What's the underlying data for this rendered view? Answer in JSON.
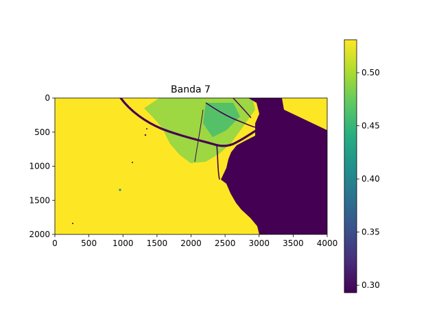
{
  "chart_data": {
    "type": "heatmap",
    "title": "Banda 7",
    "xlabel": "",
    "ylabel": "",
    "xlim": [
      0,
      4000
    ],
    "ylim": [
      2000,
      0
    ],
    "x_ticks": [
      "0",
      "500",
      "1000",
      "1500",
      "2000",
      "2500",
      "3000",
      "3500",
      "4000"
    ],
    "y_ticks": [
      "0",
      "500",
      "1000",
      "1500",
      "2000"
    ],
    "colormap": "viridis",
    "colorbar": {
      "range": [
        0.293,
        0.531
      ],
      "ticks": [
        "0.30",
        "0.35",
        "0.40",
        "0.45",
        "0.50"
      ]
    },
    "regions": {
      "land_value": 0.531,
      "water_value": 0.293,
      "vegetation_value": 0.46
    },
    "grid": false,
    "legend": "none"
  },
  "colors": {
    "high": "#fde725",
    "mid": "#21918c",
    "low": "#440154"
  }
}
